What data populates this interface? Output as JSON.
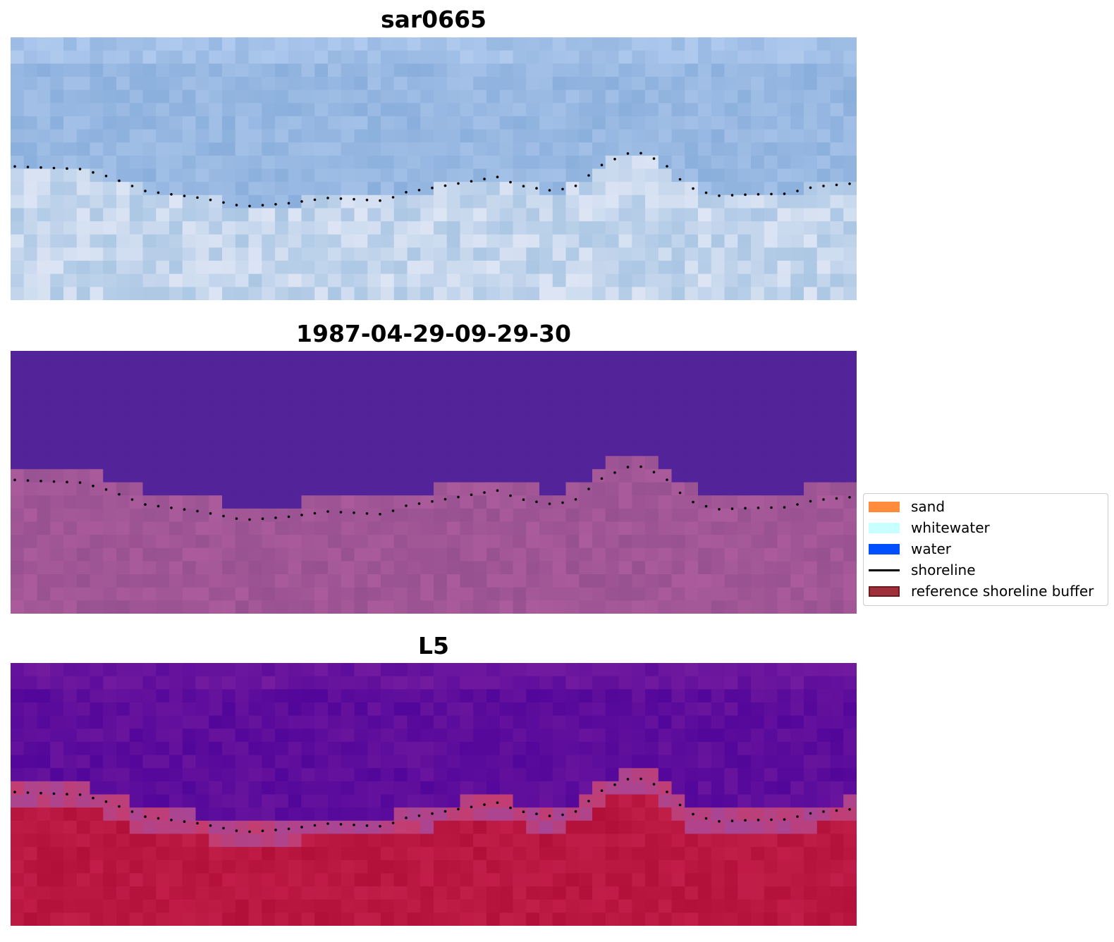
{
  "panels": [
    {
      "title": "sar0665",
      "variant": "rgb"
    },
    {
      "title": "1987-04-29-09-29-30",
      "variant": "classified"
    },
    {
      "title": "L5",
      "variant": "index"
    }
  ],
  "legend": {
    "items": [
      {
        "label": "sand",
        "kind": "patch",
        "color": "#ff8c3c"
      },
      {
        "label": "whitewater",
        "kind": "patch",
        "color": "#c8ffff"
      },
      {
        "label": "water",
        "kind": "patch",
        "color": "#0050ff"
      },
      {
        "label": "shoreline",
        "kind": "line",
        "color": "#000000"
      },
      {
        "label": "reference shoreline buffer",
        "kind": "patch",
        "color": "#a0303a"
      }
    ]
  },
  "colors": {
    "rgb_sky": "#8fb4de",
    "rgb_beach": "#bfd0ea",
    "classified_water": "#532399",
    "classified_land": "#a4578f",
    "index_low": "#5a0c9c",
    "index_high": "#c0143e",
    "shoreline_dots": "#000000"
  }
}
